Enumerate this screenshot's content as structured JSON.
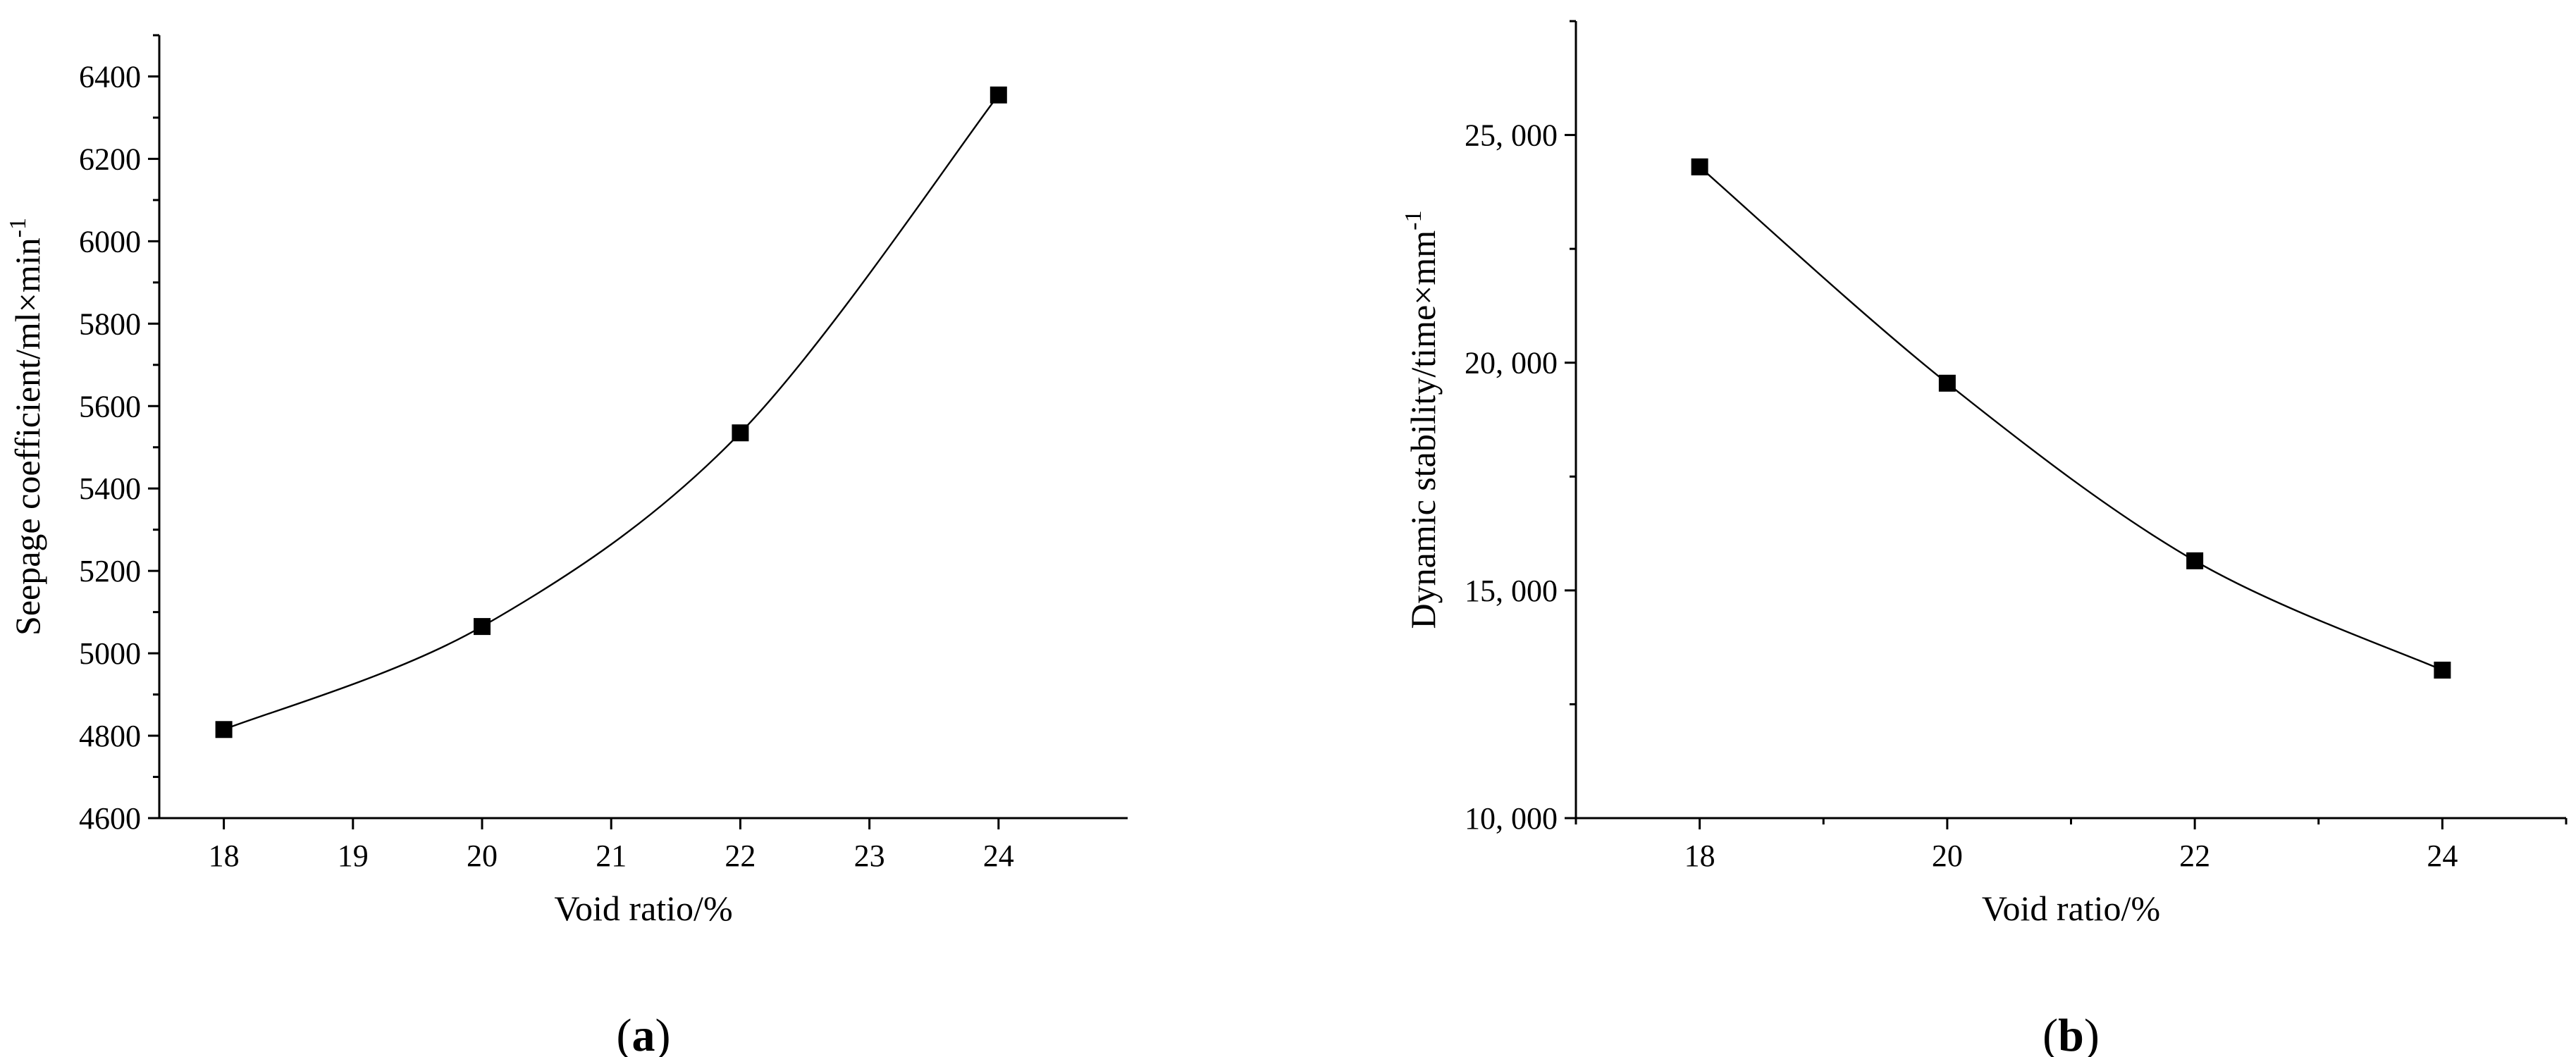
{
  "chart_data": [
    {
      "panel": "(a)",
      "panel_letter": "a",
      "type": "line",
      "xlabel": "Void ratio/%",
      "ylabel": "Seepage coefficient/ml×min",
      "ylabel_superscript": "-1",
      "xlim": [
        17.5,
        25.0
      ],
      "ylim": [
        4600,
        6500
      ],
      "xticks": [
        18,
        19,
        20,
        21,
        22,
        23,
        24
      ],
      "yticks": [
        4600,
        4800,
        5000,
        5200,
        5400,
        5600,
        5800,
        6000,
        6200,
        6400
      ],
      "ytick_labels": [
        "4600",
        "4800",
        "5000",
        "5200",
        "5400",
        "5600",
        "5800",
        "6000",
        "6200",
        "6400"
      ],
      "minor_y_step": 100,
      "marker": "square",
      "series": [
        {
          "x": [
            18,
            20,
            22,
            24
          ],
          "y": [
            4815,
            5065,
            5535,
            6355
          ]
        }
      ]
    },
    {
      "panel": "(b)",
      "panel_letter": "b",
      "type": "line",
      "xlabel": "Void ratio/%",
      "ylabel": "Dynamic stability/time×mm",
      "ylabel_superscript": "-1",
      "xlim": [
        17.0,
        25.0
      ],
      "ylim": [
        10000,
        27500
      ],
      "xticks": [
        18,
        20,
        22,
        24
      ],
      "yticks": [
        10000,
        15000,
        20000,
        25000
      ],
      "ytick_labels": [
        "10, 000",
        "15, 000",
        "20, 000",
        "25, 000"
      ],
      "minor_y_step": 2500,
      "minor_x_step": 1,
      "marker": "square",
      "series": [
        {
          "x": [
            18,
            20,
            22,
            24
          ],
          "y": [
            24300,
            19550,
            15650,
            13250
          ]
        }
      ]
    }
  ]
}
